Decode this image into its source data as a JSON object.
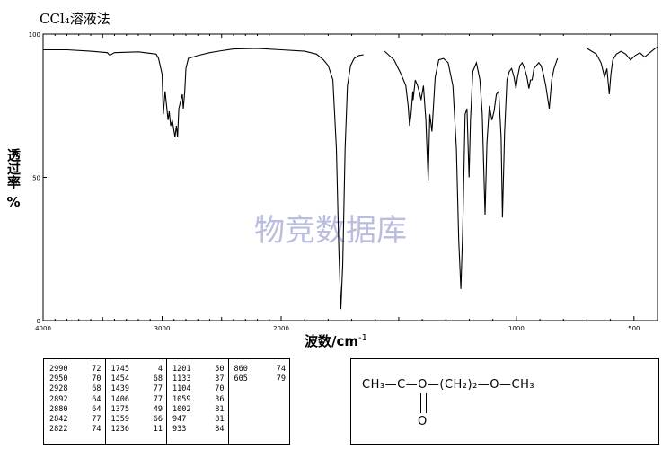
{
  "header": {
    "title": "CCl₄溶液法"
  },
  "axes": {
    "ylabel": "透过率",
    "ylabel_unit": "%",
    "xlabel": "波数/cm",
    "xlabel_sup": "-1"
  },
  "watermark": "物竞数据库",
  "chart_data": {
    "type": "line",
    "title": "CCl₄溶液法",
    "xlabel": "波数/cm-1",
    "ylabel": "透过率 %",
    "xlim": [
      4000,
      400
    ],
    "ylim": [
      0,
      100
    ],
    "x_ticks": [
      4000,
      3000,
      2000,
      1000,
      500
    ],
    "y_ticks": [
      0,
      50,
      100
    ],
    "grid": false,
    "segments": [
      {
        "x": [
          4000,
          3800,
          3600,
          3460,
          3440,
          3400,
          3200,
          3050,
          3030,
          3000,
          2990,
          2975,
          2950,
          2940,
          2928,
          2915,
          2892,
          2880,
          2870,
          2860,
          2842,
          2830,
          2822,
          2810,
          2800,
          2780,
          2700,
          2600,
          2500,
          2400,
          2200,
          2000,
          1900,
          1850,
          1820,
          1800,
          1780,
          1765,
          1755,
          1746,
          1738,
          1728,
          1718,
          1705,
          1690,
          1670,
          1650
        ],
        "y": [
          94.5,
          94.5,
          94.0,
          93.5,
          92.6,
          93.5,
          93.8,
          93.0,
          91.5,
          86.0,
          72.0,
          80.0,
          70.0,
          73.0,
          68.0,
          70.0,
          64.0,
          68.0,
          64.0,
          74.0,
          77.0,
          79.0,
          74.0,
          80.0,
          88.0,
          91.5,
          92.5,
          93.5,
          94.2,
          94.8,
          95.0,
          94.5,
          94.0,
          93.0,
          91.0,
          89.0,
          84.0,
          60.0,
          25.0,
          4.0,
          20.0,
          60.0,
          82.0,
          89.0,
          91.5,
          92.5,
          92.8
        ]
      },
      {
        "x": [
          1560,
          1520,
          1490,
          1470,
          1460,
          1454,
          1448,
          1440,
          1439,
          1430,
          1420,
          1410,
          1405,
          1395,
          1385,
          1375,
          1368,
          1359,
          1345,
          1330,
          1310,
          1290,
          1270,
          1255,
          1245,
          1236,
          1228,
          1218,
          1210,
          1201,
          1195,
          1185,
          1170,
          1155,
          1145,
          1133,
          1125,
          1115,
          1104,
          1095,
          1085,
          1075,
          1065,
          1059,
          1050,
          1040,
          1030,
          1020,
          1010,
          1002,
          995,
          985,
          975,
          965,
          955,
          947,
          940,
          933,
          925,
          915,
          905,
          895,
          885,
          875,
          860,
          850,
          840,
          825
        ],
        "y": [
          94.0,
          91.0,
          86.0,
          82.0,
          75.0,
          68.0,
          72.0,
          80.0,
          77.0,
          84.0,
          82.0,
          79.0,
          77.0,
          82.0,
          70.0,
          49.0,
          72.0,
          66.0,
          85.0,
          91.0,
          91.5,
          90.0,
          82.0,
          60.0,
          28.0,
          11.0,
          32.0,
          72.0,
          74.0,
          50.0,
          70.0,
          87.0,
          90.0,
          84.0,
          72.0,
          37.0,
          62.0,
          75.0,
          70.0,
          73.0,
          79.0,
          80.0,
          64.0,
          36.0,
          66.0,
          84.0,
          87.0,
          88.0,
          85.0,
          81.0,
          85.0,
          89.0,
          90.0,
          88.0,
          85.0,
          81.0,
          84.0,
          84.0,
          88.0,
          89.0,
          90.0,
          89.0,
          86.0,
          82.0,
          74.0,
          84.0,
          88.0,
          91.5
        ]
      },
      {
        "x": [
          700,
          680,
          660,
          640,
          625,
          615,
          605,
          598,
          590,
          575,
          555,
          535,
          515,
          495,
          475,
          455,
          440,
          425,
          410,
          400
        ],
        "y": [
          95.0,
          94.0,
          93.0,
          90.0,
          85.0,
          88.0,
          79.0,
          86.0,
          91.0,
          93.0,
          94.0,
          93.0,
          91.0,
          92.5,
          93.5,
          92.0,
          93.0,
          94.0,
          95.0,
          95.5
        ]
      }
    ],
    "peak_table": [
      [
        [
          "2990",
          "72"
        ],
        [
          "2950",
          "70"
        ],
        [
          "2928",
          "68"
        ],
        [
          "2892",
          "64"
        ],
        [
          "2880",
          "64"
        ],
        [
          "2842",
          "77"
        ],
        [
          "2822",
          "74"
        ]
      ],
      [
        [
          "1745",
          "4"
        ],
        [
          "1454",
          "68"
        ],
        [
          "1439",
          "77"
        ],
        [
          "1406",
          "77"
        ],
        [
          "1375",
          "49"
        ],
        [
          "1359",
          "66"
        ],
        [
          "1236",
          "11"
        ]
      ],
      [
        [
          "1201",
          "50"
        ],
        [
          "1133",
          "37"
        ],
        [
          "1104",
          "70"
        ],
        [
          "1059",
          "36"
        ],
        [
          "1002",
          "81"
        ],
        [
          "947",
          "81"
        ],
        [
          "933",
          "84"
        ]
      ],
      [
        [
          "860",
          "74"
        ],
        [
          "605",
          "79"
        ]
      ]
    ]
  },
  "structure": {
    "formula": "CH₃—C—O—(CH₂)₂—O—CH₃",
    "carbonyl_oxygen": "O"
  }
}
